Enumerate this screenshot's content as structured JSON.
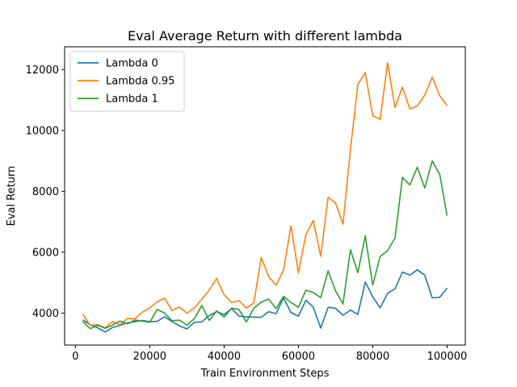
{
  "chart_data": {
    "type": "line",
    "title": "Eval Average Return with different lambda",
    "xlabel": "Train Environment Steps",
    "ylabel": "Eval Return",
    "xlim": [
      -2900,
      104900
    ],
    "ylim": [
      2950,
      12750
    ],
    "xticks": [
      0,
      20000,
      40000,
      60000,
      80000,
      100000
    ],
    "yticks": [
      4000,
      6000,
      8000,
      10000,
      12000
    ],
    "grid": false,
    "legend_position": "top-left",
    "x": [
      2000,
      4000,
      6000,
      8000,
      10000,
      12000,
      14000,
      16000,
      18000,
      20000,
      22000,
      24000,
      26000,
      28000,
      30000,
      32000,
      34000,
      36000,
      38000,
      40000,
      42000,
      44000,
      46000,
      48000,
      50000,
      52000,
      54000,
      56000,
      58000,
      60000,
      62000,
      64000,
      66000,
      68000,
      70000,
      72000,
      74000,
      76000,
      78000,
      80000,
      82000,
      84000,
      86000,
      88000,
      90000,
      92000,
      94000,
      96000,
      98000,
      100000
    ],
    "series": [
      {
        "name": "Lambda 0",
        "color": "#1f77b4",
        "values": [
          3780,
          3620,
          3520,
          3380,
          3530,
          3600,
          3680,
          3720,
          3760,
          3720,
          3730,
          3880,
          3720,
          3580,
          3480,
          3700,
          3710,
          3920,
          4050,
          3950,
          4150,
          3900,
          3880,
          3870,
          3860,
          4050,
          3980,
          4500,
          4020,
          3900,
          4420,
          4200,
          3510,
          4190,
          4160,
          3930,
          4100,
          3960,
          5020,
          4540,
          4170,
          4650,
          4800,
          5350,
          5250,
          5420,
          5250,
          4500,
          4520,
          4820
        ]
      },
      {
        "name": "Lambda 0.95",
        "color": "#ff7f0e",
        "values": [
          3960,
          3600,
          3620,
          3520,
          3730,
          3620,
          3830,
          3810,
          4030,
          4170,
          4370,
          4490,
          4090,
          4200,
          4000,
          4170,
          4460,
          4750,
          5140,
          4600,
          4350,
          4410,
          4170,
          4330,
          5830,
          5200,
          4920,
          5410,
          6870,
          5320,
          6570,
          7040,
          5870,
          7810,
          7620,
          6920,
          9370,
          11510,
          11900,
          10480,
          10370,
          12220,
          10760,
          11420,
          10710,
          10800,
          11160,
          11750,
          11140,
          10820
        ]
      },
      {
        "name": "Lambda 1",
        "color": "#2ca02c",
        "values": [
          3720,
          3490,
          3600,
          3500,
          3610,
          3740,
          3650,
          3770,
          3740,
          3700,
          4120,
          4000,
          3750,
          3770,
          3610,
          3820,
          4250,
          3760,
          4070,
          3870,
          4160,
          4120,
          3710,
          4160,
          4360,
          4460,
          4150,
          4550,
          4350,
          4190,
          4750,
          4680,
          4510,
          5390,
          4730,
          4300,
          6080,
          5330,
          6540,
          4920,
          5860,
          6050,
          6470,
          8460,
          8210,
          8790,
          8110,
          9000,
          8560,
          7200
        ]
      }
    ]
  }
}
